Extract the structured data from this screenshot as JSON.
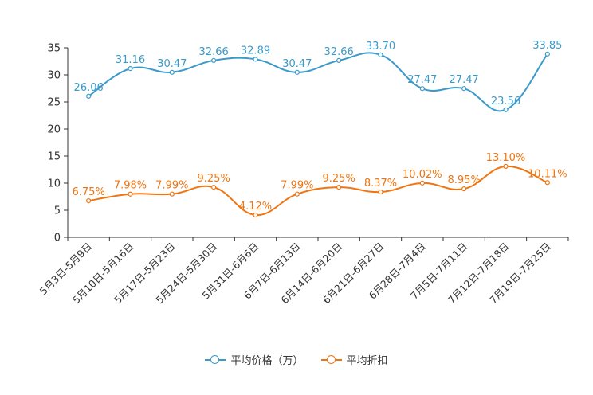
{
  "chart_data": {
    "type": "line",
    "title": "",
    "xlabel": "",
    "ylabel": "",
    "ylim": [
      0,
      35
    ],
    "yticks": [
      0,
      5,
      10,
      15,
      20,
      25,
      30,
      35
    ],
    "grid": false,
    "legend_position": "bottom-center",
    "categories": [
      "5月3日-5月9日",
      "5月10日-5月16日",
      "5月17日-5月23日",
      "5月24日-5月30日",
      "5月31日-6月6日",
      "6月7日-6月13日",
      "6月14日-6月20日",
      "6月21日-6月27日",
      "6月28日-7月4日",
      "7月5日-7月11日",
      "7月12日-7月18日",
      "7月19日-7月25日"
    ],
    "series": [
      {
        "name": "平均价格（万）",
        "color": "#3A9AC9",
        "values": [
          26.06,
          31.16,
          30.47,
          32.66,
          32.89,
          30.47,
          32.66,
          33.7,
          27.47,
          27.47,
          23.56,
          33.85
        ],
        "labels": [
          "26.06",
          "31.16",
          "30.47",
          "32.66",
          "32.89",
          "30.47",
          "32.66",
          "33.70",
          "27.47",
          "27.47",
          "23.56",
          "33.85"
        ]
      },
      {
        "name": "平均折扣",
        "color": "#F07510",
        "values": [
          6.75,
          7.98,
          7.99,
          9.25,
          4.12,
          7.99,
          9.25,
          8.37,
          10.02,
          8.95,
          13.1,
          10.11
        ],
        "labels": [
          "6.75%",
          "7.98%",
          "7.99%",
          "9.25%",
          "4.12%",
          "7.99%",
          "9.25%",
          "8.37%",
          "10.02%",
          "8.95%",
          "13.10%",
          "10.11%"
        ]
      }
    ]
  }
}
